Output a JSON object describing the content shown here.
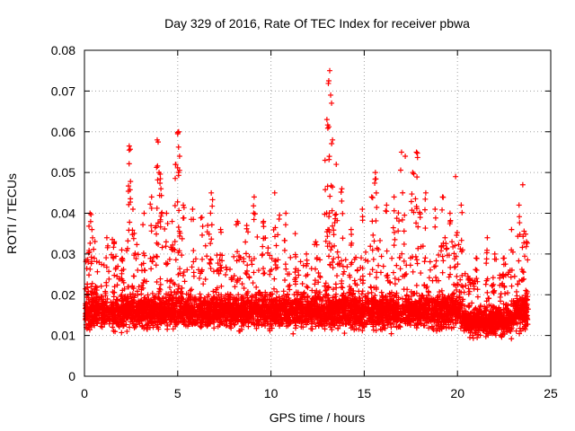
{
  "chart_data": {
    "type": "scatter",
    "title": "Day 329 of 2016, Rate Of TEC Index for receiver pbwa",
    "xlabel": "GPS time / hours",
    "ylabel": "ROTI / TECUs",
    "xlim": [
      0,
      25
    ],
    "ylim": [
      0,
      0.08
    ],
    "x_ticks": [
      0,
      5,
      10,
      15,
      20,
      25
    ],
    "y_ticks": [
      0,
      0.01,
      0.02,
      0.03,
      0.04,
      0.05,
      0.06,
      0.07,
      0.08
    ],
    "x_tick_labels": [
      "0",
      "5",
      "10",
      "15",
      "20",
      "25"
    ],
    "y_tick_labels": [
      "0",
      "0.01",
      "0.02",
      "0.03",
      "0.04",
      "0.05",
      "0.06",
      "0.07",
      "0.08"
    ],
    "grid": true,
    "marker": "+",
    "color": "#ff0000",
    "series": [
      {
        "name": "",
        "description_points": "dense band of ROTI samples roughly 0.004–0.035 TECUs over 0–23.8 h, with spikes listed below",
        "points": [
          [
            0.1,
            0.012
          ],
          [
            0.2,
            0.028
          ],
          [
            0.3,
            0.04
          ],
          [
            0.4,
            0.036
          ],
          [
            0.6,
            0.022
          ],
          [
            1.2,
            0.034
          ],
          [
            1.6,
            0.033
          ],
          [
            2.0,
            0.031
          ],
          [
            2.4,
            0.0555
          ],
          [
            2.4,
            0.0565
          ],
          [
            2.6,
            0.041
          ],
          [
            3.2,
            0.04
          ],
          [
            3.6,
            0.044
          ],
          [
            3.9,
            0.058
          ],
          [
            3.95,
            0.0575
          ],
          [
            4.0,
            0.05
          ],
          [
            4.1,
            0.046
          ],
          [
            4.4,
            0.04
          ],
          [
            4.7,
            0.038
          ],
          [
            4.9,
            0.052
          ],
          [
            5.0,
            0.0595
          ],
          [
            5.05,
            0.06
          ],
          [
            5.1,
            0.054
          ],
          [
            5.3,
            0.042
          ],
          [
            5.8,
            0.041
          ],
          [
            6.3,
            0.039
          ],
          [
            6.8,
            0.045
          ],
          [
            7.3,
            0.036
          ],
          [
            8.2,
            0.038
          ],
          [
            8.7,
            0.037
          ],
          [
            9.1,
            0.044
          ],
          [
            9.6,
            0.038
          ],
          [
            10.2,
            0.045
          ],
          [
            10.8,
            0.04
          ],
          [
            11.3,
            0.035
          ],
          [
            11.9,
            0.03
          ],
          [
            12.4,
            0.033
          ],
          [
            12.9,
            0.053
          ],
          [
            13.0,
            0.063
          ],
          [
            13.1,
            0.0725
          ],
          [
            13.15,
            0.075
          ],
          [
            13.2,
            0.069
          ],
          [
            13.3,
            0.058
          ],
          [
            13.5,
            0.052
          ],
          [
            13.8,
            0.046
          ],
          [
            14.3,
            0.036
          ],
          [
            14.9,
            0.041
          ],
          [
            15.4,
            0.044
          ],
          [
            15.6,
            0.05
          ],
          [
            16.2,
            0.042
          ],
          [
            16.6,
            0.044
          ],
          [
            17.0,
            0.055
          ],
          [
            17.2,
            0.054
          ],
          [
            17.6,
            0.05
          ],
          [
            17.8,
            0.055
          ],
          [
            18.3,
            0.045
          ],
          [
            18.8,
            0.041
          ],
          [
            19.2,
            0.044
          ],
          [
            19.6,
            0.04
          ],
          [
            19.9,
            0.049
          ],
          [
            20.2,
            0.042
          ],
          [
            20.6,
            0.024
          ],
          [
            21.0,
            0.029
          ],
          [
            21.6,
            0.034
          ],
          [
            22.0,
            0.03
          ],
          [
            22.5,
            0.029
          ],
          [
            22.9,
            0.036
          ],
          [
            23.3,
            0.042
          ],
          [
            23.5,
            0.047
          ],
          [
            23.7,
            0.033
          ]
        ]
      }
    ]
  }
}
